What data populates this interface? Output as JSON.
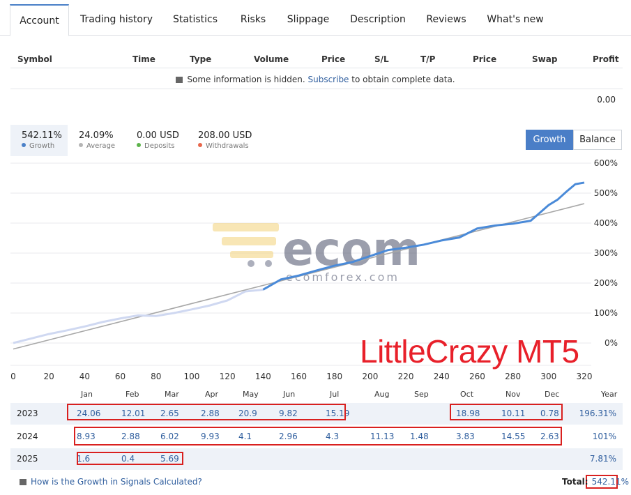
{
  "tabs": [
    "Account",
    "Trading history",
    "Statistics",
    "Risks",
    "Slippage",
    "Description",
    "Reviews",
    "What's new"
  ],
  "table_headers": [
    "Symbol",
    "Time",
    "Type",
    "Volume",
    "Price",
    "S/L",
    "T/P",
    "Price",
    "Swap",
    "Profit"
  ],
  "hidden_notice": {
    "before": "Some information is hidden.",
    "link": "Subscribe",
    "after": "to obtain complete data."
  },
  "profit_total": "0.00",
  "stats": [
    {
      "value": "542.11%",
      "label": "Growth",
      "color": "#4a80c8"
    },
    {
      "value": "24.09%",
      "label": "Average",
      "color": "#b5b5b5"
    },
    {
      "value": "0.00 USD",
      "label": "Deposits",
      "color": "#5db34b"
    },
    {
      "value": "208.00 USD",
      "label": "Withdrawals",
      "color": "#e8674b"
    }
  ],
  "toggle": {
    "growth": "Growth",
    "balance": "Balance"
  },
  "chart_data": {
    "type": "line",
    "xlim": [
      0,
      320
    ],
    "ylim": [
      -50,
      600
    ],
    "x_ticks": [
      "0",
      "20",
      "40",
      "60",
      "80",
      "100",
      "120",
      "140",
      "160",
      "180",
      "200",
      "220",
      "240",
      "260",
      "280",
      "300",
      "320"
    ],
    "y_ticks": [
      "600%",
      "500%",
      "400%",
      "300%",
      "200%",
      "100%",
      "0%"
    ],
    "series": [
      {
        "color": "#4a8ad8",
        "x": [
          0,
          10,
          20,
          30,
          40,
          50,
          60,
          70,
          80,
          90,
          100,
          110,
          120,
          130,
          140,
          150,
          160,
          170,
          180,
          190,
          200,
          210,
          220,
          230,
          240,
          250,
          260,
          270,
          280,
          290,
          300,
          305,
          310,
          315,
          320
        ],
        "y": [
          0,
          15,
          30,
          42,
          55,
          70,
          82,
          92,
          90,
          100,
          112,
          125,
          142,
          172,
          178,
          212,
          225,
          242,
          258,
          270,
          290,
          310,
          318,
          328,
          342,
          352,
          382,
          392,
          398,
          408,
          460,
          478,
          505,
          530,
          535
        ]
      },
      {
        "color": "#a8a8a8",
        "x": [
          0,
          320
        ],
        "y": [
          -20,
          465
        ]
      }
    ]
  },
  "watermark": {
    "logo": "ecom",
    "subtext": "ecomforex.com"
  },
  "brand_label": "LittleCrazy MT5",
  "months": [
    "Jan",
    "Feb",
    "Mar",
    "Apr",
    "May",
    "Jun",
    "Jul",
    "Aug",
    "Sep",
    "Oct",
    "Nov",
    "Dec",
    "Year"
  ],
  "years": [
    {
      "year": "2023",
      "values": [
        "24.06",
        "12.01",
        "2.65",
        "2.88",
        "20.9",
        "9.82",
        "15.19",
        "",
        "",
        "18.98",
        "10.11",
        "0.78"
      ],
      "total": "196.31%"
    },
    {
      "year": "2024",
      "values": [
        "8.93",
        "2.88",
        "6.02",
        "9.93",
        "4.1",
        "2.96",
        "4.3",
        "11.13",
        "1.48",
        "3.83",
        "14.55",
        "2.63"
      ],
      "total": "101%"
    },
    {
      "year": "2025",
      "values": [
        "1.6",
        "0.4",
        "5.69",
        "",
        "",
        "",
        "",
        "",
        "",
        "",
        "",
        ""
      ],
      "total": "7.81%"
    }
  ],
  "footer": {
    "link": "How is the Growth in Signals Calculated?",
    "total_label": "Total:",
    "total_value": "542.11%"
  }
}
